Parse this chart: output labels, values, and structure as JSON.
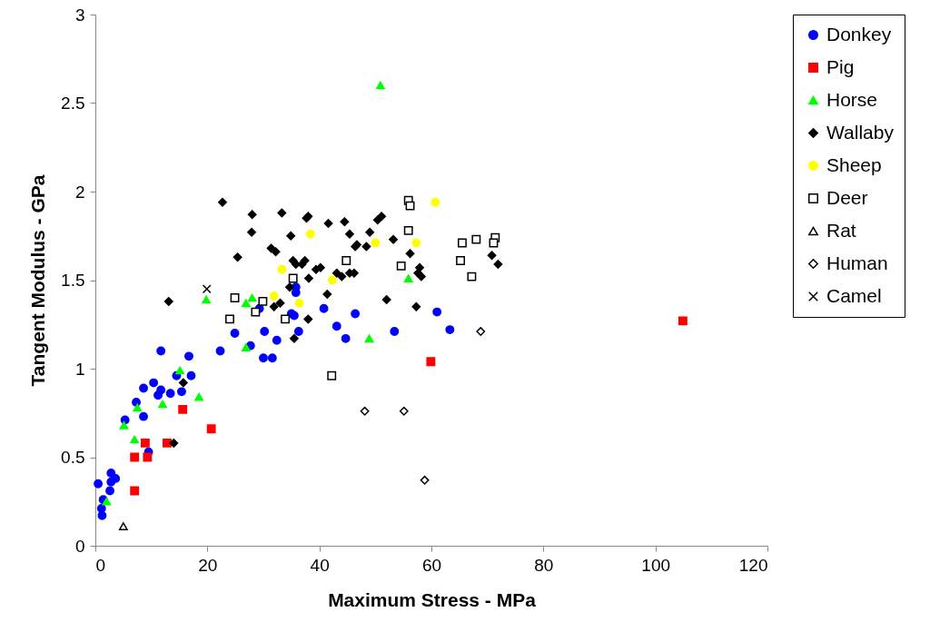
{
  "chart_data": {
    "type": "scatter",
    "xlabel": "Maximum Stress - MPa",
    "ylabel": "Tangent Modulus - GPa",
    "xlim": [
      0,
      120
    ],
    "xticks": [
      0,
      20,
      40,
      60,
      80,
      100,
      120
    ],
    "ylim": [
      0,
      3
    ],
    "yticks": [
      0,
      0.5,
      1,
      1.5,
      2,
      2.5,
      3
    ],
    "grid": false,
    "legend": "right",
    "series": [
      {
        "name": "Donkey",
        "color": "#0000ff",
        "marker": "circle",
        "x": [
          11.7,
          22.3,
          16.7,
          14.5,
          17.1,
          10.4,
          8.6,
          11.7,
          11.2,
          13.4,
          15.4,
          7.3,
          8.6,
          5.3,
          9.5,
          2.8,
          3.6,
          2.8,
          0.5,
          2.6,
          1.4,
          1.1,
          1.2,
          35.8,
          35.8,
          40.8,
          29.3,
          35.0,
          35.5,
          43.1,
          44.7,
          24.9,
          30.2,
          32.4,
          36.3,
          27.7,
          30.0,
          31.6,
          46.4,
          53.4,
          61.0,
          63.3
        ],
        "values": [
          1.1,
          1.1,
          1.07,
          0.96,
          0.96,
          0.92,
          0.89,
          0.88,
          0.85,
          0.86,
          0.87,
          0.81,
          0.73,
          0.71,
          0.53,
          0.41,
          0.38,
          0.36,
          0.35,
          0.31,
          0.26,
          0.21,
          0.17,
          1.46,
          1.43,
          1.34,
          1.34,
          1.31,
          1.3,
          1.24,
          1.17,
          1.2,
          1.21,
          1.16,
          1.21,
          1.13,
          1.06,
          1.06,
          1.31,
          1.21,
          1.32,
          1.22
        ]
      },
      {
        "name": "Pig",
        "color": "#ff0000",
        "marker": "square",
        "x": [
          15.6,
          20.7,
          8.9,
          12.8,
          7.0,
          9.3,
          7.0,
          59.9,
          104.9
        ],
        "values": [
          0.77,
          0.66,
          0.58,
          0.58,
          0.5,
          0.5,
          0.31,
          1.04,
          1.27
        ]
      },
      {
        "name": "Horse",
        "color": "#00ff00",
        "marker": "triangle",
        "x": [
          19.8,
          15.1,
          18.5,
          12.0,
          7.5,
          5.1,
          7.0,
          2.0,
          26.9,
          28.0,
          26.9,
          55.9,
          48.9,
          50.9
        ],
        "values": [
          1.39,
          0.99,
          0.84,
          0.8,
          0.78,
          0.68,
          0.6,
          0.25,
          1.37,
          1.4,
          1.12,
          1.51,
          1.17,
          2.6
        ]
      },
      {
        "name": "Wallaby",
        "color": "#000000",
        "marker": "diamond",
        "x": [
          22.7,
          28.0,
          33.3,
          37.7,
          38.0,
          41.6,
          44.5,
          27.9,
          34.9,
          45.4,
          31.4,
          32.2,
          25.4,
          35.3,
          35.8,
          36.9,
          37.4,
          39.4,
          40.2,
          43.1,
          44.0,
          45.4,
          46.2,
          38.1,
          34.7,
          41.4,
          31.9,
          33.0,
          38.0,
          35.5,
          13.1,
          15.7,
          14.0,
          49.0,
          50.4,
          51.1,
          46.4,
          46.7,
          48.4,
          53.2,
          56.2,
          57.9,
          57.6,
          58.2,
          52.0,
          57.3,
          70.8,
          71.9
        ],
        "values": [
          1.94,
          1.87,
          1.88,
          1.85,
          1.86,
          1.82,
          1.83,
          1.77,
          1.75,
          1.76,
          1.68,
          1.66,
          1.63,
          1.61,
          1.59,
          1.59,
          1.61,
          1.56,
          1.57,
          1.54,
          1.52,
          1.54,
          1.54,
          1.51,
          1.46,
          1.42,
          1.35,
          1.37,
          1.28,
          1.17,
          1.38,
          0.92,
          0.58,
          1.77,
          1.84,
          1.86,
          1.69,
          1.7,
          1.69,
          1.73,
          1.65,
          1.57,
          1.54,
          1.52,
          1.39,
          1.35,
          1.64,
          1.59
        ]
      },
      {
        "name": "Sheep",
        "color": "#ffff00",
        "marker": "circle",
        "x": [
          38.4,
          33.3,
          42.3,
          31.9,
          36.4,
          50.0,
          57.3,
          60.7
        ],
        "values": [
          1.76,
          1.56,
          1.5,
          1.41,
          1.37,
          1.71,
          1.71,
          1.94
        ]
      },
      {
        "name": "Deer",
        "color": "#000000",
        "marker": "square",
        "x": [
          44.8,
          35.3,
          24.9,
          29.9,
          28.6,
          24.0,
          33.9,
          42.2,
          55.9,
          56.2,
          55.9,
          54.6,
          65.5,
          68.0,
          71.4,
          71.1,
          65.2,
          67.2
        ],
        "values": [
          1.61,
          1.51,
          1.4,
          1.38,
          1.32,
          1.28,
          1.28,
          0.96,
          1.95,
          1.92,
          1.78,
          1.58,
          1.71,
          1.73,
          1.74,
          1.71,
          1.61,
          1.52
        ]
      },
      {
        "name": "Rat",
        "color": "#000000",
        "marker": "triangle",
        "x": [
          5.0
        ],
        "values": [
          0.11
        ]
      },
      {
        "name": "Human",
        "color": "#000000",
        "marker": "diamond",
        "x": [
          68.8,
          48.1,
          55.1,
          58.8
        ],
        "values": [
          1.21,
          0.76,
          0.76,
          0.37
        ]
      },
      {
        "name": "Camel",
        "color": "#000000",
        "marker": "cross",
        "x": [
          19.9
        ],
        "values": [
          1.45
        ]
      }
    ]
  }
}
